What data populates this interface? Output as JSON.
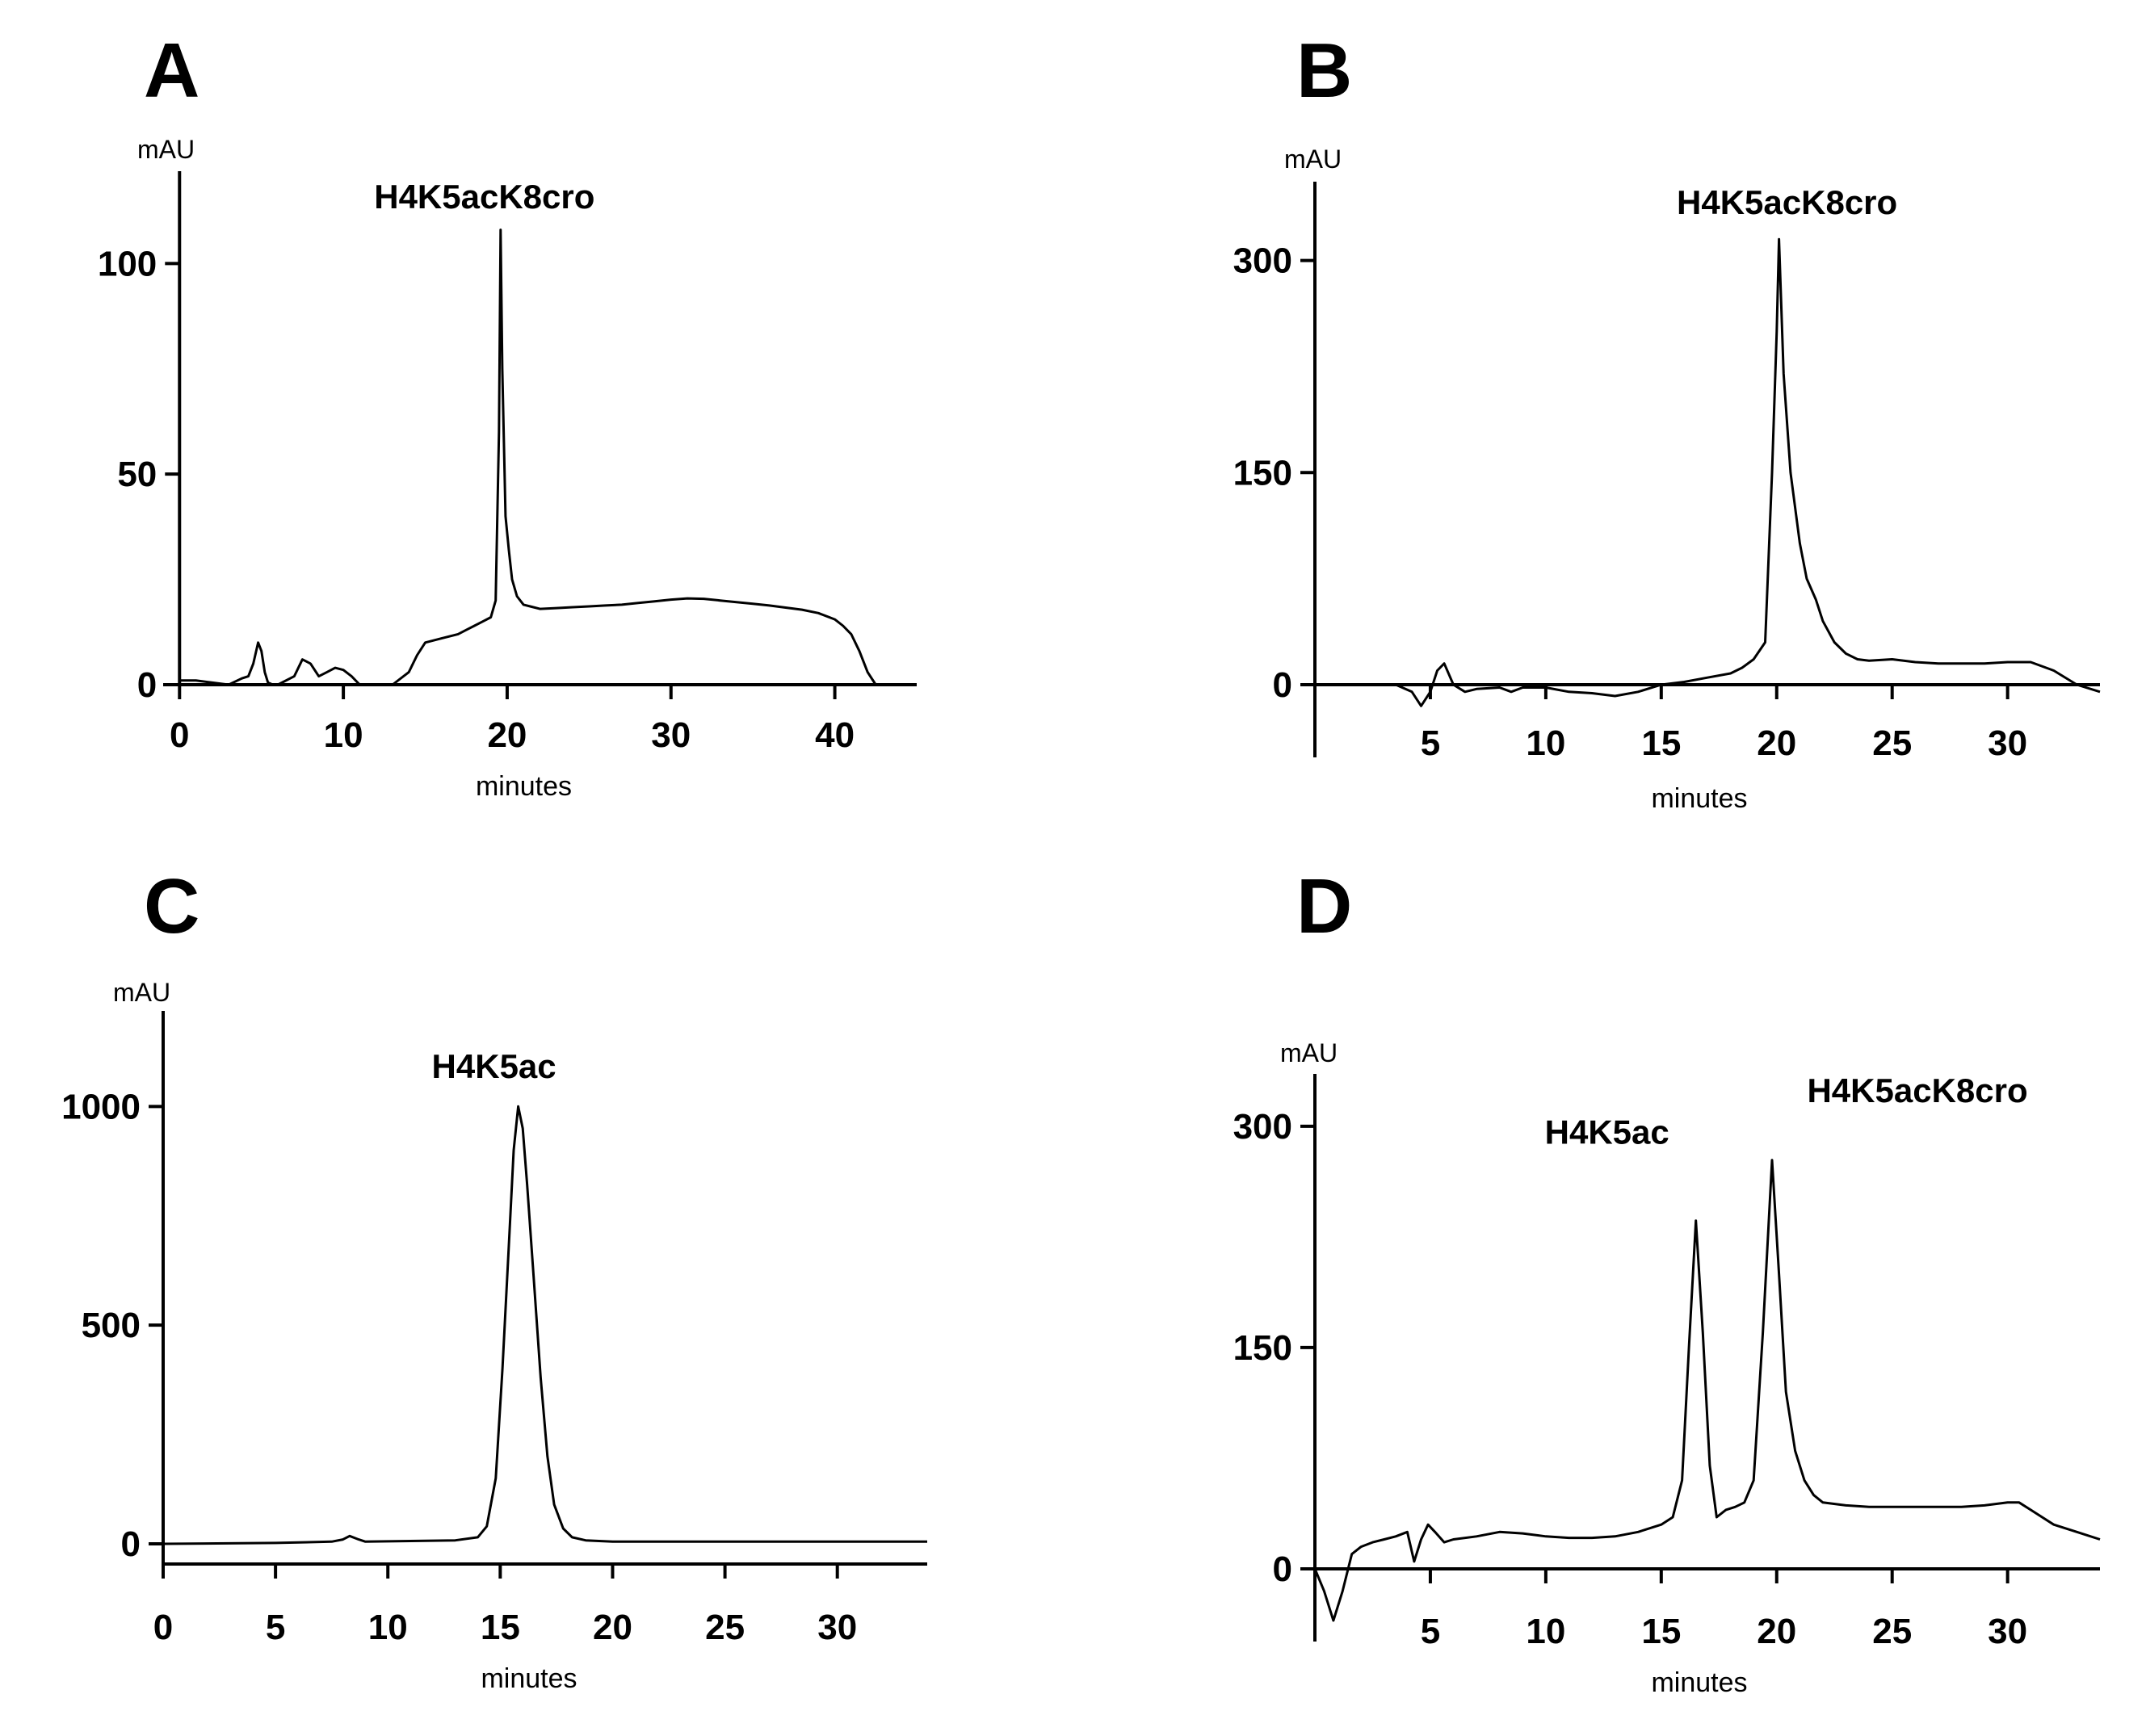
{
  "chart_data": [
    {
      "panel": "A",
      "type": "line",
      "unit": "mAU",
      "xlabel": "minutes",
      "xlim": [
        -1,
        45
      ],
      "ylim": [
        0,
        120
      ],
      "xticks": [
        0,
        10,
        20,
        30,
        40
      ],
      "yticks": [
        0,
        50,
        100
      ],
      "peak_labels": [
        {
          "text": "H4K5acK8cro",
          "x": 19.6,
          "y": 108
        }
      ],
      "x": [
        0,
        1,
        2,
        3,
        3.8,
        4.2,
        4.5,
        4.8,
        5.0,
        5.2,
        5.4,
        5.7,
        6.0,
        7.0,
        7.5,
        8.0,
        8.5,
        9.0,
        9.5,
        10.0,
        10.5,
        11.0,
        12.0,
        13.0,
        14.0,
        14.5,
        15.0,
        16.0,
        17.0,
        17.5,
        18.0,
        18.5,
        19.0,
        19.3,
        19.5,
        19.6,
        19.7,
        19.9,
        20.1,
        20.3,
        20.6,
        21.0,
        21.5,
        22.0,
        23.0,
        24.0,
        25.0,
        26.0,
        27.0,
        28.0,
        29.0,
        30.0,
        31.0,
        32.0,
        33.0,
        34.0,
        35.0,
        36.0,
        37.0,
        38.0,
        39.0,
        40.0,
        40.5,
        41.0,
        41.5,
        42.0,
        42.5
      ],
      "y": [
        1,
        1,
        0.5,
        0,
        1.5,
        2,
        5,
        10,
        8,
        3,
        0.5,
        0,
        0,
        2,
        6,
        5,
        2,
        3,
        4,
        3.5,
        2,
        0,
        0,
        0,
        3,
        7,
        10,
        11,
        12,
        13,
        14,
        15,
        16,
        20,
        60,
        108,
        75,
        40,
        32,
        25,
        21,
        19,
        18.5,
        18,
        18.2,
        18.4,
        18.6,
        18.8,
        19.0,
        19.4,
        19.8,
        20.2,
        20.5,
        20.4,
        20.0,
        19.6,
        19.2,
        18.8,
        18.3,
        17.8,
        17.0,
        15.5,
        14,
        12,
        8,
        3,
        0
      ]
    },
    {
      "panel": "B",
      "type": "line",
      "unit": "mAU",
      "xlabel": "minutes",
      "xlim": [
        0,
        34
      ],
      "ylim": [
        -50,
        350
      ],
      "xticks": [
        5,
        10,
        15,
        20,
        25,
        30
      ],
      "yticks": [
        0,
        150,
        300
      ],
      "peak_labels": [
        {
          "text": "H4K5acK8cro",
          "x": 20.1,
          "y": 315
        }
      ],
      "x": [
        0,
        2,
        3.5,
        4.2,
        4.6,
        5.0,
        5.3,
        5.6,
        6.0,
        6.5,
        7.0,
        8.0,
        8.5,
        9.0,
        10.0,
        11.0,
        12.0,
        13.0,
        14.0,
        15.0,
        16.0,
        17.0,
        18.0,
        18.5,
        19.0,
        19.5,
        19.8,
        20.0,
        20.1,
        20.3,
        20.6,
        21.0,
        21.3,
        21.7,
        22.0,
        22.5,
        23.0,
        23.5,
        24.0,
        25.0,
        26.0,
        27.0,
        28.0,
        29.0,
        30.0,
        31.0,
        32.0,
        33.0,
        34.0
      ],
      "y": [
        0,
        0,
        0,
        -5,
        -15,
        -5,
        10,
        15,
        0,
        -5,
        -3,
        -2,
        -5,
        -2,
        -2,
        -5,
        -6,
        -8,
        -5,
        0,
        2,
        5,
        8,
        12,
        18,
        30,
        150,
        250,
        315,
        220,
        150,
        100,
        75,
        60,
        45,
        30,
        22,
        18,
        17,
        18,
        16,
        15,
        15,
        15,
        16,
        16,
        10,
        0,
        -5
      ]
    },
    {
      "panel": "C",
      "type": "line",
      "unit": "mAU",
      "xlabel": "minutes",
      "xlim": [
        0,
        34
      ],
      "ylim": [
        -50,
        1200
      ],
      "xticks": [
        0,
        5,
        10,
        15,
        20,
        25,
        30
      ],
      "yticks": [
        0,
        500,
        1000
      ],
      "peak_labels": [
        {
          "text": "H4K5ac",
          "x": 15.8,
          "y": 1000
        }
      ],
      "x": [
        0,
        5,
        7.5,
        8.0,
        8.3,
        8.7,
        9.0,
        13.0,
        14.0,
        14.4,
        14.8,
        15.1,
        15.4,
        15.6,
        15.8,
        16.0,
        16.2,
        16.5,
        16.8,
        17.1,
        17.4,
        17.8,
        18.2,
        18.8,
        20.0,
        25.0,
        30.0,
        34.0
      ],
      "y": [
        0,
        2,
        5,
        10,
        18,
        10,
        5,
        8,
        15,
        40,
        150,
        400,
        700,
        900,
        1000,
        950,
        820,
        600,
        380,
        200,
        90,
        35,
        15,
        8,
        5,
        5,
        5,
        5
      ]
    },
    {
      "panel": "D",
      "type": "line",
      "unit": "mAU",
      "xlabel": "minutes",
      "xlim": [
        0,
        34
      ],
      "ylim": [
        -50,
        330
      ],
      "xticks": [
        5,
        10,
        15,
        20,
        25,
        30
      ],
      "yticks": [
        0,
        150,
        300
      ],
      "peak_labels": [
        {
          "text": "H4K5ac",
          "x": 16.5,
          "y": 236
        },
        {
          "text": "H4K5acK8cro",
          "x": 19.8,
          "y": 277
        }
      ],
      "x": [
        0,
        0.4,
        0.8,
        1.2,
        1.6,
        2.0,
        2.5,
        3.0,
        3.5,
        4.0,
        4.3,
        4.6,
        4.9,
        5.2,
        5.6,
        6.0,
        7.0,
        8.0,
        9.0,
        10.0,
        11.0,
        12.0,
        13.0,
        14.0,
        15.0,
        15.5,
        15.9,
        16.2,
        16.5,
        16.8,
        17.1,
        17.4,
        17.8,
        18.2,
        18.6,
        19.0,
        19.4,
        19.8,
        20.1,
        20.4,
        20.8,
        21.2,
        21.6,
        22.0,
        23.0,
        24.0,
        25.0,
        26.0,
        27.0,
        28.0,
        29.0,
        30.0,
        30.5,
        31.0,
        32.0,
        33.0,
        34.0
      ],
      "y": [
        0,
        -15,
        -35,
        -15,
        10,
        15,
        18,
        20,
        22,
        25,
        5,
        20,
        30,
        25,
        18,
        20,
        22,
        25,
        24,
        22,
        21,
        21,
        22,
        25,
        30,
        35,
        60,
        150,
        236,
        160,
        70,
        35,
        40,
        42,
        45,
        60,
        160,
        277,
        200,
        120,
        80,
        60,
        50,
        45,
        43,
        42,
        42,
        42,
        42,
        42,
        43,
        45,
        45,
        40,
        30,
        25,
        20
      ]
    }
  ],
  "panels": [
    {
      "letter": "A"
    },
    {
      "letter": "B"
    },
    {
      "letter": "C"
    },
    {
      "letter": "D"
    }
  ]
}
